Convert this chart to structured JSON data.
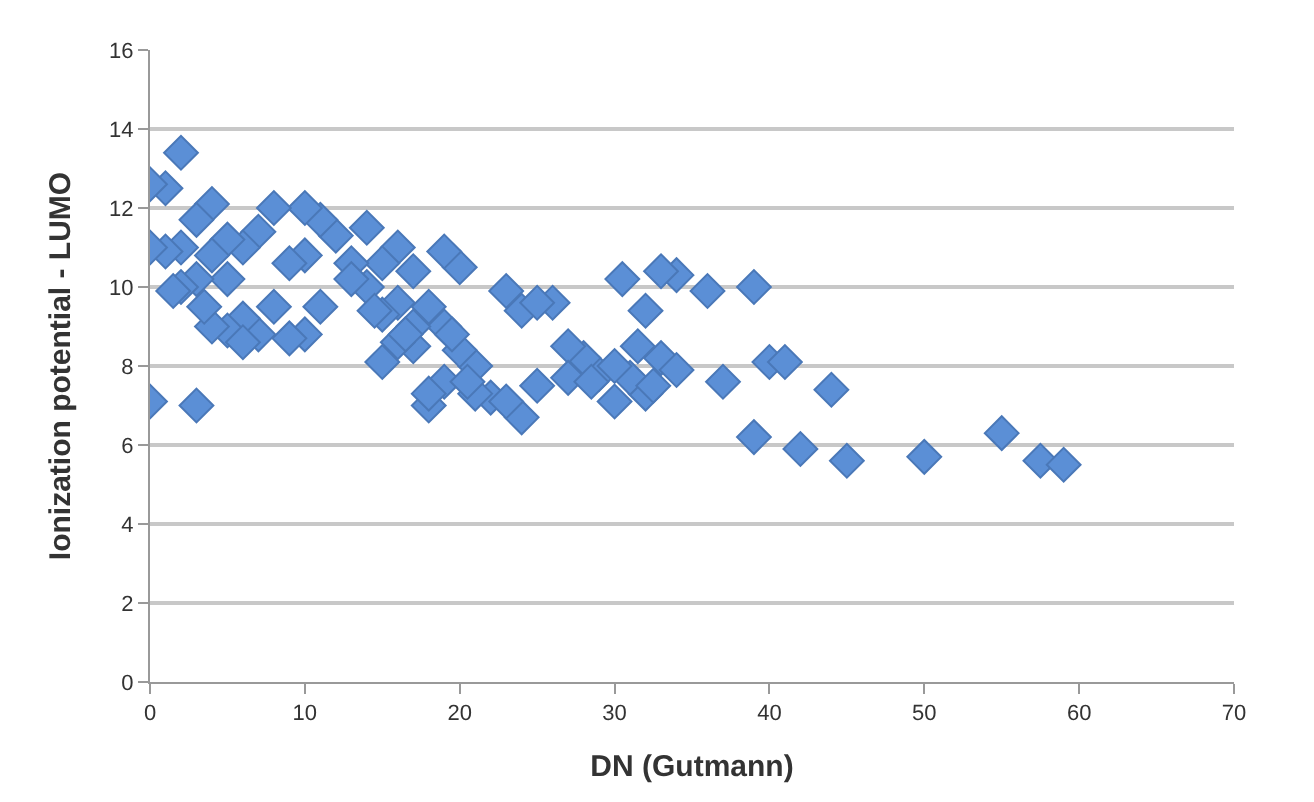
{
  "chart_data": {
    "type": "scatter",
    "xlabel": "DN (Gutmann)",
    "ylabel": "Ionization potential - LUMO",
    "x": [
      37,
      39,
      39,
      40,
      41,
      42,
      44,
      45,
      50,
      55,
      57.5,
      59,
      36,
      34,
      33,
      30.5,
      32,
      33,
      34,
      32,
      31,
      30,
      29,
      28,
      27,
      27,
      26,
      25,
      24,
      24,
      23,
      25,
      22,
      21,
      21,
      20,
      20,
      19,
      19,
      19,
      18,
      18,
      18,
      17,
      17,
      17,
      16,
      16,
      16,
      15,
      15,
      15,
      14,
      14,
      13,
      12,
      11,
      11,
      10,
      10,
      10,
      9,
      9,
      8,
      8,
      7,
      7,
      6,
      6,
      5,
      5,
      5,
      4,
      4,
      4,
      3,
      3,
      3,
      2,
      2,
      2,
      1,
      1,
      0,
      0,
      0,
      1.5,
      3.5,
      6,
      13,
      14.5,
      16.5,
      19.5,
      20.5,
      23,
      28.5,
      30,
      32.5,
      31.5
    ],
    "values": [
      7.6,
      6.2,
      10,
      8.1,
      8.1,
      5.9,
      7.4,
      5.6,
      5.7,
      6.3,
      5.6,
      5.5,
      9.9,
      10.3,
      10.4,
      10.2,
      9.4,
      8.2,
      7.9,
      7.3,
      7.7,
      7.1,
      7.8,
      8.2,
      8.5,
      7.7,
      9.6,
      7.5,
      9.4,
      6.7,
      9.9,
      9.6,
      7.2,
      8.0,
      7.3,
      10.5,
      8.4,
      10.9,
      9.0,
      7.6,
      7.0,
      7.3,
      9.5,
      9.0,
      10.4,
      8.5,
      11.0,
      9.6,
      8.6,
      10.6,
      9.3,
      8.1,
      11.5,
      10.0,
      10.6,
      11.3,
      11.7,
      9.5,
      12.0,
      10.8,
      8.8,
      10.6,
      8.7,
      12.0,
      9.5,
      11.4,
      8.8,
      11.0,
      9.2,
      11.2,
      10.2,
      8.9,
      12.1,
      10.8,
      9.0,
      11.7,
      10.2,
      7.0,
      13.4,
      11.0,
      10.0,
      12.5,
      10.9,
      7.1,
      11.0,
      12.6,
      9.9,
      9.5,
      8.6,
      10.2,
      9.4,
      8.8,
      8.8,
      7.6,
      7.1,
      7.6,
      8.0,
      7.5,
      8.5
    ],
    "color": "#5b8fd6",
    "marker": "diamond",
    "xlim": [
      0,
      70
    ],
    "xticks": [
      0,
      10,
      20,
      30,
      40,
      50,
      60,
      70
    ],
    "ylim": [
      0,
      16
    ],
    "yticks": [
      0,
      2,
      4,
      6,
      8,
      10,
      12,
      14,
      16
    ],
    "grid": "y"
  }
}
